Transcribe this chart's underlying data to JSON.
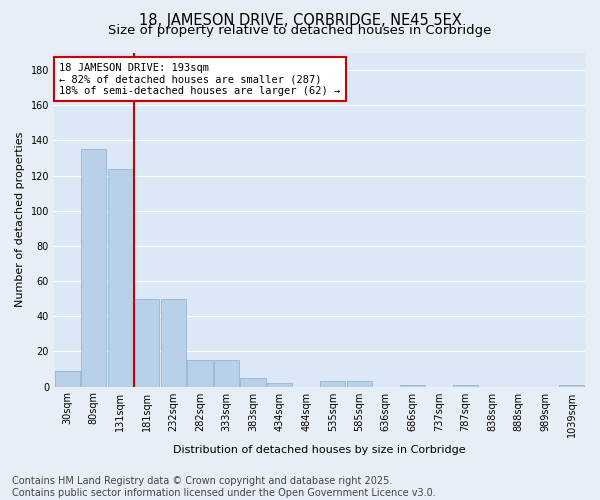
{
  "title_line1": "18, JAMESON DRIVE, CORBRIDGE, NE45 5EX",
  "title_line2": "Size of property relative to detached houses in Corbridge",
  "xlabel": "Distribution of detached houses by size in Corbridge",
  "ylabel": "Number of detached properties",
  "bins": [
    "30sqm",
    "80sqm",
    "131sqm",
    "181sqm",
    "232sqm",
    "282sqm",
    "333sqm",
    "383sqm",
    "434sqm",
    "484sqm",
    "535sqm",
    "585sqm",
    "636sqm",
    "686sqm",
    "737sqm",
    "787sqm",
    "838sqm",
    "888sqm",
    "989sqm",
    "1039sqm"
  ],
  "values": [
    9,
    135,
    124,
    50,
    50,
    15,
    15,
    5,
    2,
    0,
    3,
    3,
    0,
    1,
    0,
    1,
    0,
    0,
    0,
    1
  ],
  "bar_color": "#b8d0e8",
  "bar_edge_color": "#8ab0cc",
  "vline_color": "#cc0000",
  "annotation_text": "18 JAMESON DRIVE: 193sqm\n← 82% of detached houses are smaller (287)\n18% of semi-detached houses are larger (62) →",
  "annotation_box_color": "#ffffff",
  "annotation_box_edge": "#cc0000",
  "ylim": [
    0,
    190
  ],
  "yticks": [
    0,
    20,
    40,
    60,
    80,
    100,
    120,
    140,
    160,
    180
  ],
  "fig_background": "#e8eef5",
  "plot_background": "#dce8f5",
  "grid_color": "#ffffff",
  "footer_line1": "Contains HM Land Registry data © Crown copyright and database right 2025.",
  "footer_line2": "Contains public sector information licensed under the Open Government Licence v3.0.",
  "title_fontsize": 10.5,
  "subtitle_fontsize": 9.5,
  "footer_fontsize": 7,
  "axis_label_fontsize": 8,
  "tick_fontsize": 7,
  "annot_fontsize": 7.5
}
